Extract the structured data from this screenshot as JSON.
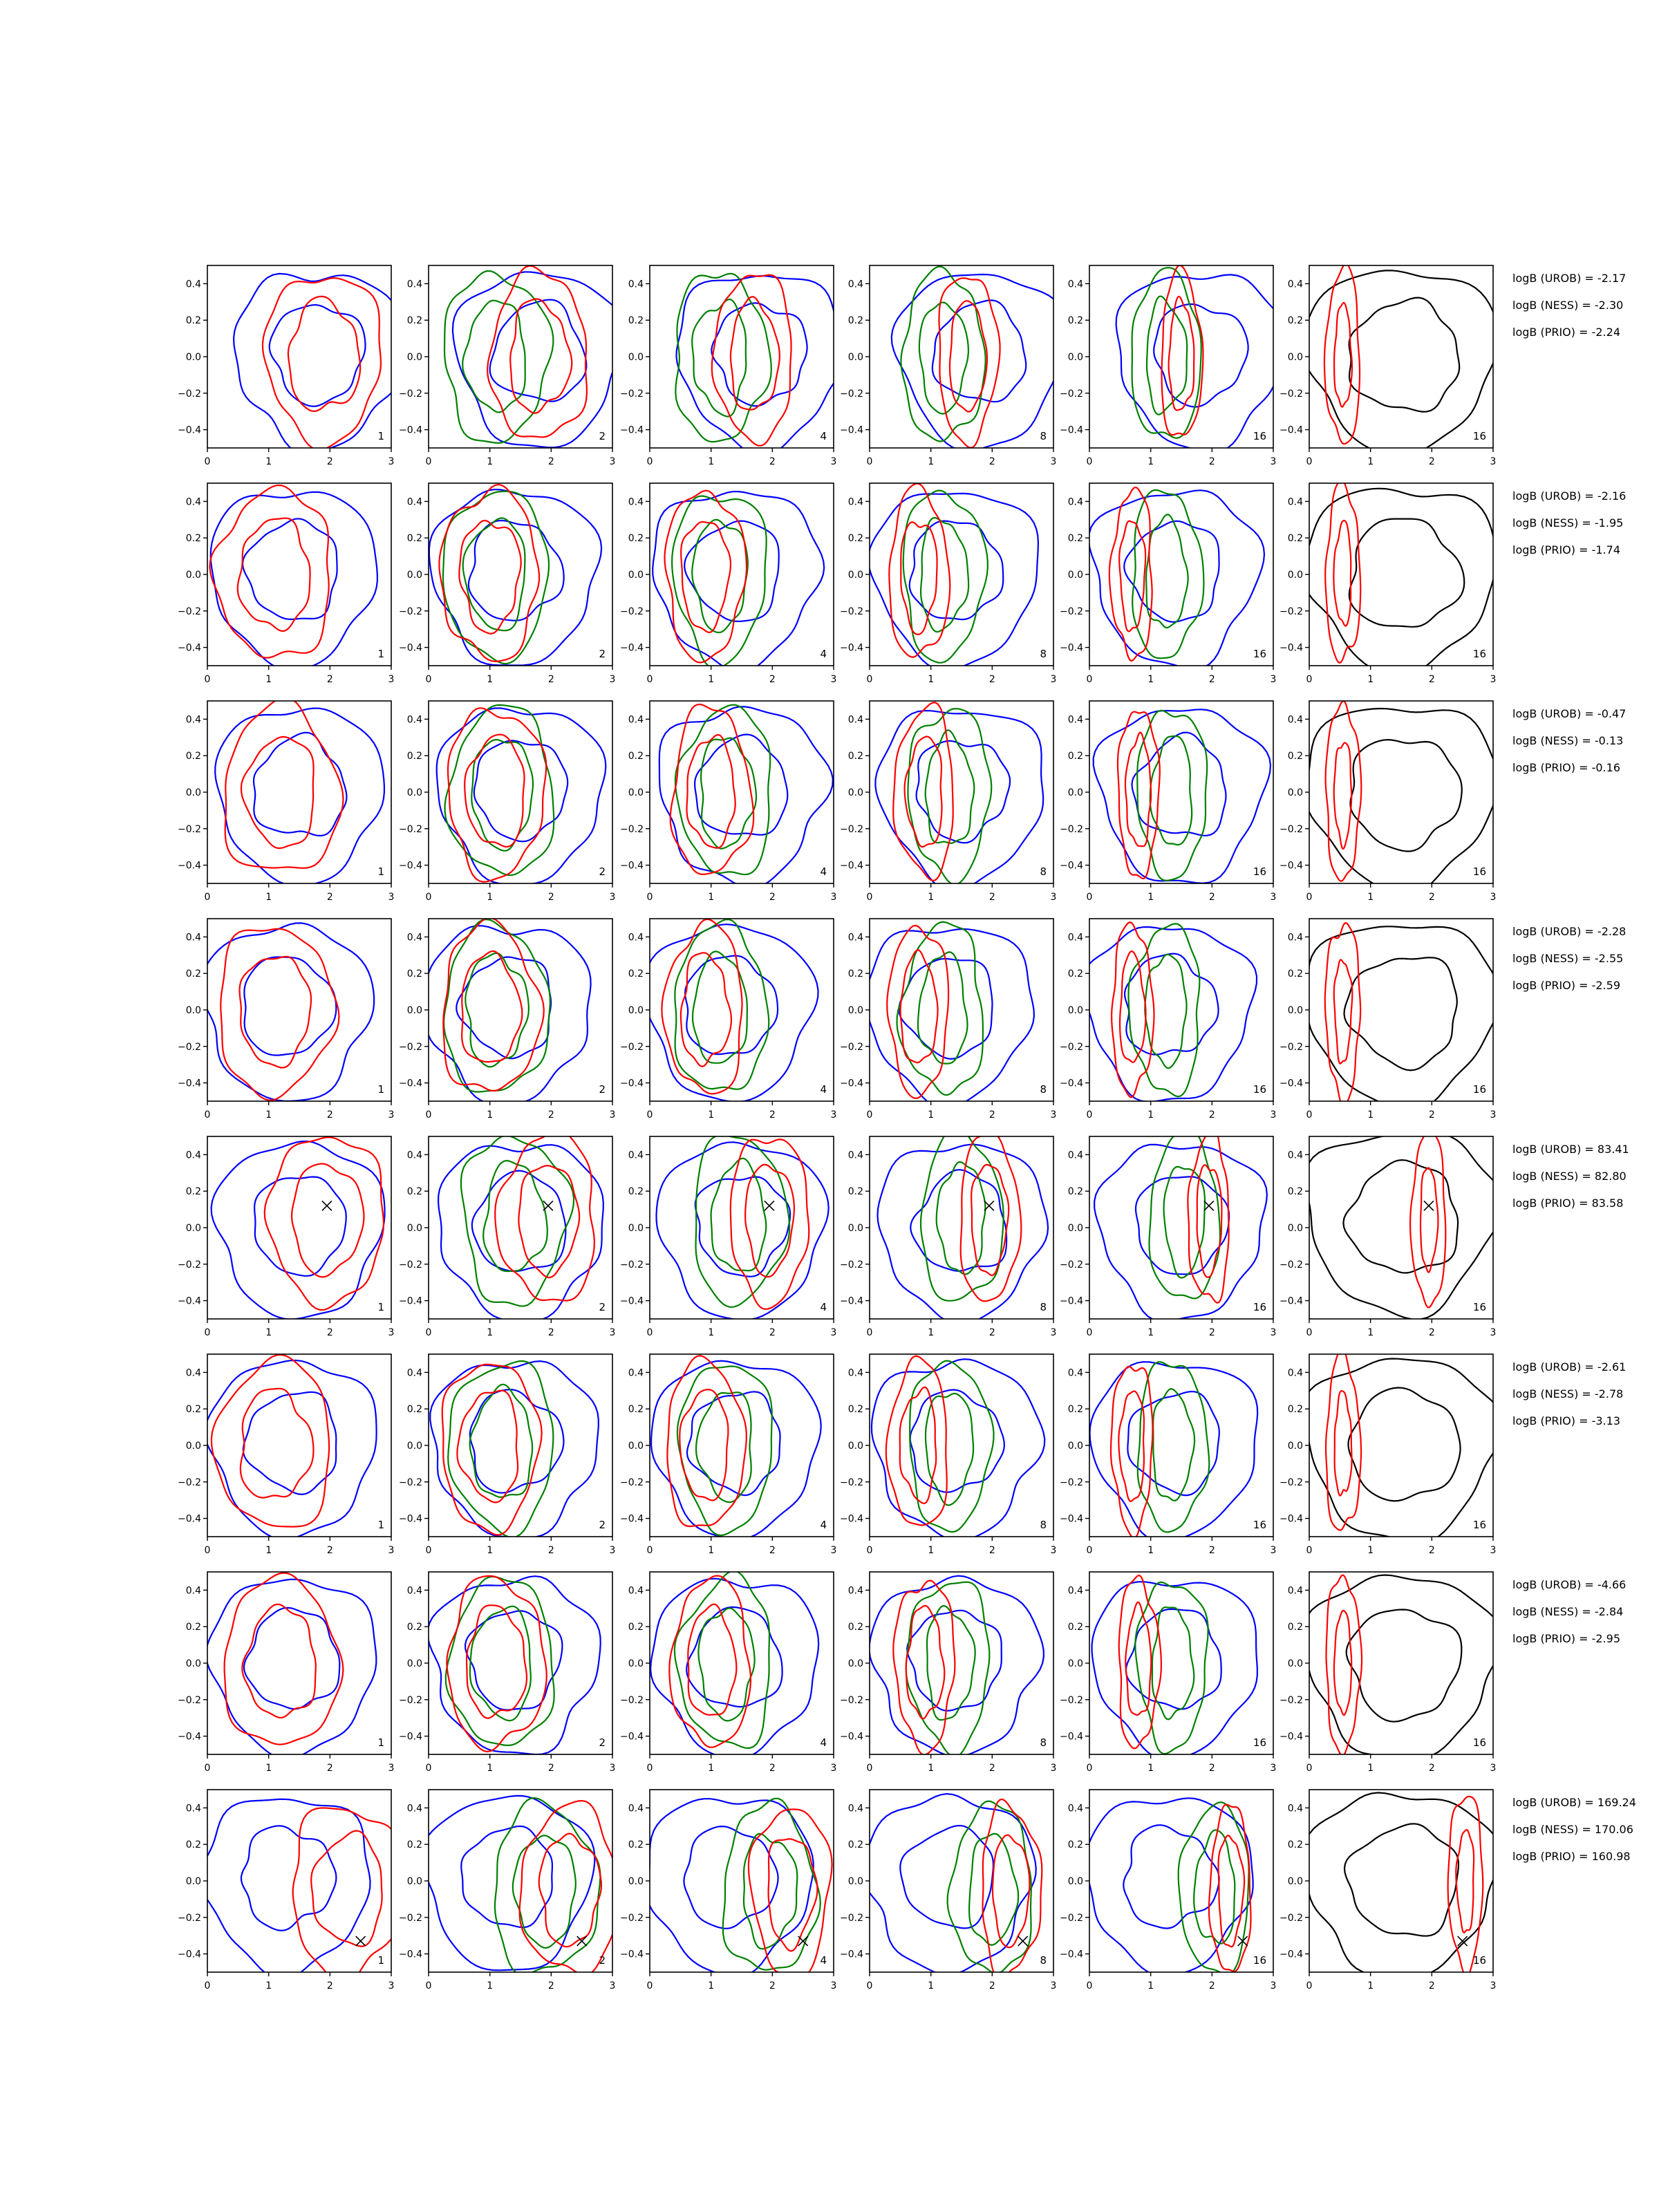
{
  "chart_data": {
    "type": "contour",
    "grid_rows": 8,
    "grid_cols": 6,
    "xlim": [
      0,
      3
    ],
    "ylim": [
      -0.5,
      0.5
    ],
    "x_ticks": [
      0,
      1,
      2,
      3
    ],
    "y_ticks": [
      -0.4,
      -0.2,
      0.0,
      0.2,
      0.4
    ],
    "x_tick_labels": [
      "0",
      "1",
      "2",
      "3"
    ],
    "y_tick_labels": [
      "−0.4",
      "−0.2",
      "0.0",
      "0.2",
      "0.4"
    ],
    "column_labels": [
      "1",
      "2",
      "4",
      "8",
      "16",
      "16"
    ],
    "colors": {
      "red": "#ff0000",
      "blue": "#0000ff",
      "green": "#008000",
      "black": "#000000"
    },
    "rows": [
      {
        "stats": [
          "logB (UROB) = -2.17",
          "logB (NESS) = -2.30",
          "logB (PRIO) = -2.24"
        ],
        "marker": null,
        "centers": {
          "red": [
            1.9,
            0.0
          ],
          "blue": [
            1.8,
            0.0
          ],
          "green": [
            1.1,
            0.0
          ],
          "black": [
            1.5,
            0.0
          ]
        }
      },
      {
        "stats": [
          "logB (UROB) = -2.16",
          "logB (NESS) = -1.95",
          "logB (PRIO) = -1.74"
        ],
        "marker": null,
        "centers": {
          "red": [
            1.1,
            0.0
          ],
          "blue": [
            1.4,
            0.0
          ],
          "green": [
            1.1,
            0.0
          ],
          "black": [
            1.5,
            0.0
          ]
        }
      },
      {
        "stats": [
          "logB (UROB) = -0.47",
          "logB (NESS) = -0.13",
          "logB (PRIO) = -0.16"
        ],
        "marker": null,
        "centers": {
          "red": [
            1.2,
            0.0
          ],
          "blue": [
            1.5,
            0.0
          ],
          "green": [
            1.2,
            0.0
          ],
          "black": [
            1.5,
            0.0
          ]
        }
      },
      {
        "stats": [
          "logB (UROB) = -2.28",
          "logB (NESS) = -2.55",
          "logB (PRIO) = -2.59"
        ],
        "marker": null,
        "centers": {
          "red": [
            1.1,
            0.0
          ],
          "blue": [
            1.3,
            0.0
          ],
          "green": [
            1.1,
            0.0
          ],
          "black": [
            1.5,
            0.0
          ]
        }
      },
      {
        "stats": [
          "logB (UROB) = 83.41",
          "logB (NESS) = 82.80",
          "logB (PRIO) = 83.58"
        ],
        "marker": {
          "x": 1.95,
          "y": 0.12
        },
        "centers": {
          "red": [
            1.95,
            0.05
          ],
          "blue": [
            1.5,
            0.0
          ],
          "green": [
            1.4,
            0.05
          ],
          "black": [
            1.5,
            0.05
          ]
        }
      },
      {
        "stats": [
          "logB (UROB) = -2.61",
          "logB (NESS) = -2.78",
          "logB (PRIO) = -3.13"
        ],
        "marker": null,
        "centers": {
          "red": [
            1.1,
            0.0
          ],
          "blue": [
            1.4,
            0.0
          ],
          "green": [
            1.2,
            0.0
          ],
          "black": [
            1.5,
            0.0
          ]
        }
      },
      {
        "stats": [
          "logB (UROB) = -4.66",
          "logB (NESS) = -2.84",
          "logB (PRIO) = -2.95"
        ],
        "marker": null,
        "centers": {
          "red": [
            1.2,
            0.0
          ],
          "blue": [
            1.4,
            0.0
          ],
          "green": [
            1.2,
            0.0
          ],
          "black": [
            1.5,
            0.0
          ]
        }
      },
      {
        "stats": [
          "logB (UROB) = 169.24",
          "logB (NESS) = 170.06",
          "logB (PRIO) = 160.98"
        ],
        "marker": {
          "x": 2.5,
          "y": -0.33
        },
        "centers": {
          "red": [
            2.3,
            -0.05
          ],
          "blue": [
            1.3,
            0.0
          ],
          "green": [
            1.9,
            -0.05
          ],
          "black": [
            1.5,
            0.0
          ]
        }
      }
    ]
  }
}
